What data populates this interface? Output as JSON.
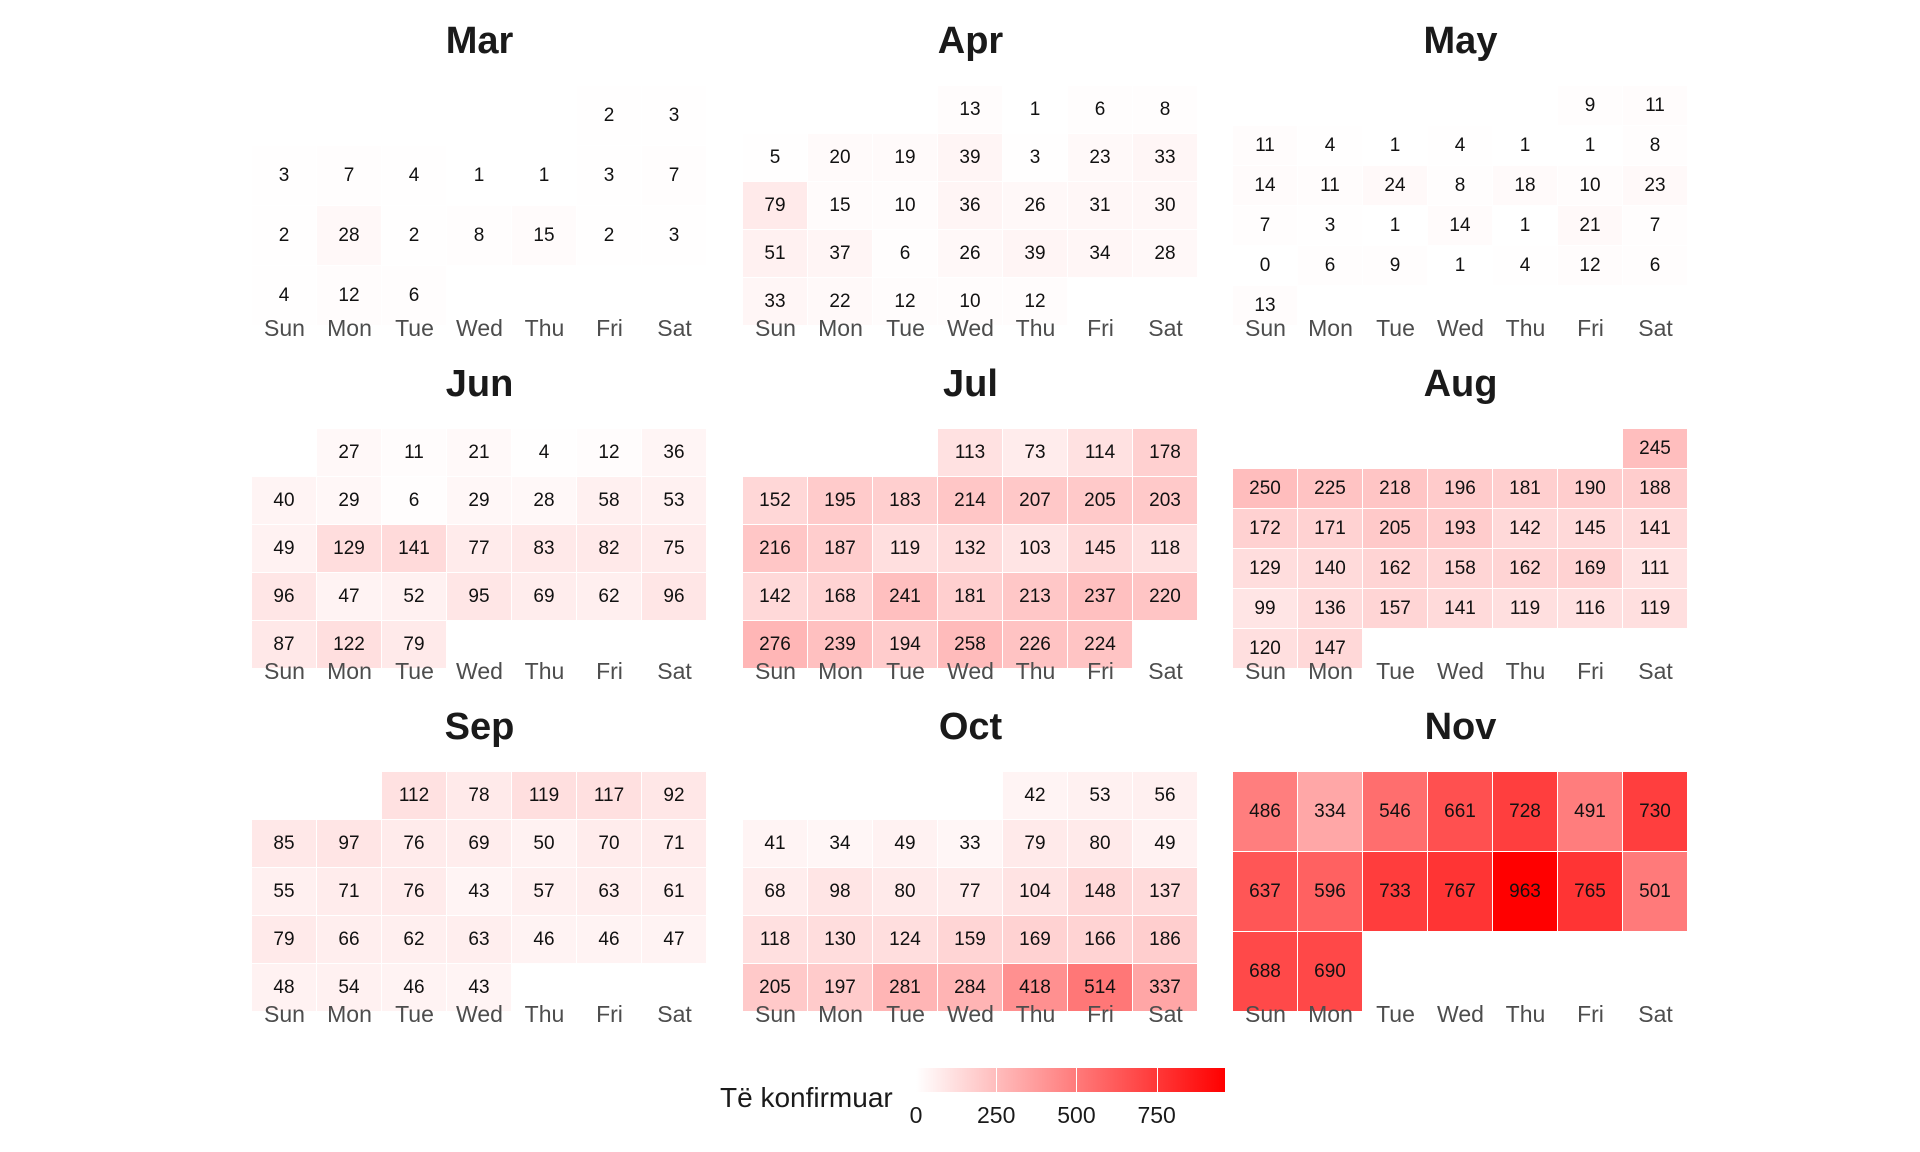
{
  "chart_data": {
    "type": "heatmap",
    "subtype": "calendar",
    "weekday_labels": [
      "Sun",
      "Mon",
      "Tue",
      "Wed",
      "Thu",
      "Fri",
      "Sat"
    ],
    "legend": {
      "title": "Të konfirmuar",
      "ticks": [
        0,
        250,
        500,
        750
      ],
      "max": 963,
      "low_color": "#ffffff",
      "high_color": "#ff0000"
    },
    "months": [
      {
        "name": "Mar",
        "start_col": 5,
        "values": [
          2,
          3,
          3,
          7,
          4,
          1,
          1,
          3,
          7,
          2,
          28,
          2,
          8,
          15,
          2,
          3,
          4,
          12,
          6
        ]
      },
      {
        "name": "Apr",
        "start_col": 3,
        "values": [
          13,
          1,
          6,
          8,
          5,
          20,
          19,
          39,
          3,
          23,
          33,
          79,
          15,
          10,
          36,
          26,
          31,
          30,
          51,
          37,
          6,
          26,
          39,
          34,
          28,
          33,
          22,
          12,
          10,
          12
        ]
      },
      {
        "name": "May",
        "start_col": 5,
        "values": [
          9,
          11,
          11,
          4,
          1,
          4,
          1,
          1,
          8,
          14,
          11,
          24,
          8,
          18,
          10,
          23,
          7,
          3,
          1,
          14,
          1,
          21,
          7,
          0,
          6,
          9,
          1,
          4,
          12,
          6,
          13
        ]
      },
      {
        "name": "Jun",
        "start_col": 1,
        "values": [
          27,
          11,
          21,
          4,
          12,
          36,
          40,
          29,
          6,
          29,
          28,
          58,
          53,
          49,
          129,
          141,
          77,
          83,
          82,
          75,
          96,
          47,
          52,
          95,
          69,
          62,
          96,
          87,
          122,
          79
        ]
      },
      {
        "name": "Jul",
        "start_col": 3,
        "values": [
          113,
          73,
          114,
          178,
          152,
          195,
          183,
          214,
          207,
          205,
          203,
          216,
          187,
          119,
          132,
          103,
          145,
          118,
          142,
          168,
          241,
          181,
          213,
          237,
          220,
          276,
          239,
          194,
          258,
          226,
          224
        ]
      },
      {
        "name": "Aug",
        "start_col": 6,
        "values": [
          245,
          250,
          225,
          218,
          196,
          181,
          190,
          188,
          172,
          171,
          205,
          193,
          142,
          145,
          141,
          129,
          140,
          162,
          158,
          162,
          169,
          111,
          99,
          136,
          157,
          141,
          119,
          116,
          119,
          120,
          147
        ]
      },
      {
        "name": "Sep",
        "start_col": 2,
        "values": [
          112,
          78,
          119,
          117,
          92,
          85,
          97,
          76,
          69,
          50,
          70,
          71,
          55,
          71,
          76,
          43,
          57,
          63,
          61,
          79,
          66,
          62,
          63,
          46,
          46,
          47,
          48,
          54,
          46,
          43
        ]
      },
      {
        "name": "Oct",
        "start_col": 4,
        "values": [
          42,
          53,
          56,
          41,
          34,
          49,
          33,
          79,
          80,
          49,
          68,
          98,
          80,
          77,
          104,
          148,
          137,
          118,
          130,
          124,
          159,
          169,
          166,
          186,
          205,
          197,
          281,
          284,
          418,
          514,
          337
        ]
      },
      {
        "name": "Nov",
        "start_col": 0,
        "values": [
          486,
          334,
          546,
          661,
          728,
          491,
          730,
          637,
          596,
          733,
          767,
          963,
          765,
          501,
          688,
          690
        ]
      }
    ]
  }
}
